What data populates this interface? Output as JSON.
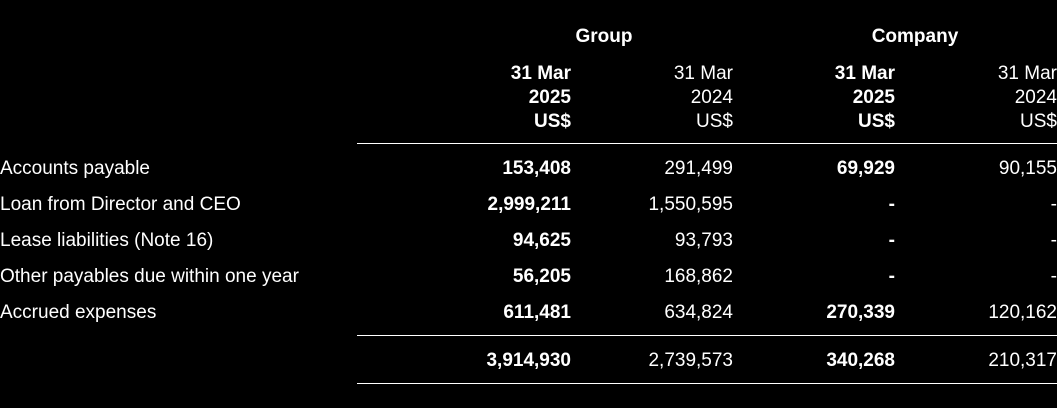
{
  "headers": {
    "group": "Group",
    "company": "Company",
    "columns": [
      {
        "line1": "31 Mar",
        "line2": "2025",
        "line3": "US$"
      },
      {
        "line1": "31 Mar",
        "line2": "2024",
        "line3": "US$"
      },
      {
        "line1": "31 Mar",
        "line2": "2025",
        "line3": "US$"
      },
      {
        "line1": "31 Mar",
        "line2": "2024",
        "line3": "US$"
      }
    ]
  },
  "rows": [
    {
      "label": "Accounts payable",
      "values": [
        "153,408",
        "291,499",
        "69,929",
        "90,155"
      ]
    },
    {
      "label": "Loan from Director and CEO",
      "values": [
        "2,999,211",
        "1,550,595",
        "-",
        "-"
      ]
    },
    {
      "label": "Lease liabilities (Note 16)",
      "values": [
        "94,625",
        "93,793",
        "-",
        "-"
      ]
    },
    {
      "label": "Other payables due within one year",
      "values": [
        "56,205",
        "168,862",
        "-",
        "-"
      ]
    },
    {
      "label": "Accrued expenses",
      "values": [
        "611,481",
        "634,824",
        "270,339",
        "120,162"
      ]
    }
  ],
  "total": {
    "values": [
      "3,914,930",
      "2,739,573",
      "340,268",
      "210,317"
    ]
  }
}
